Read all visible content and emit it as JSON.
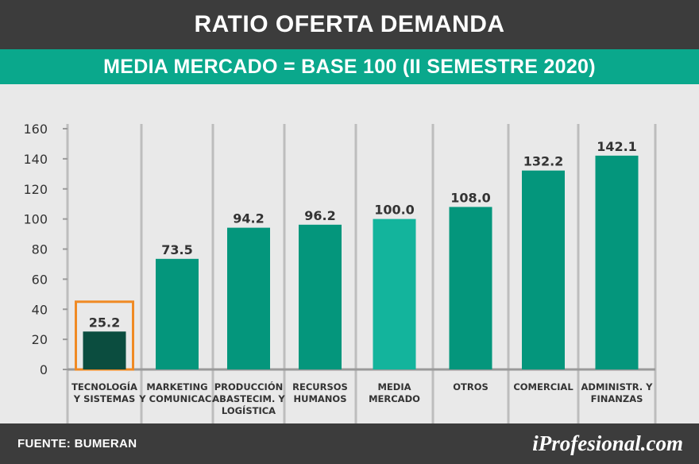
{
  "header": {
    "title": "RATIO OFERTA DEMANDA",
    "subtitle": "MEDIA MERCADO = BASE 100 (II SEMESTRE 2020)"
  },
  "footer": {
    "source": "FUENTE: BUMERAN",
    "brand": "iProfesional.com"
  },
  "colors": {
    "bar": "#04967c",
    "bar_media": "#13b49c",
    "bar_highlight": "#0b4d3f",
    "highlight_outline": "#f08a24",
    "title_bg": "#3c3c3c",
    "subtitle_bg": "#0aa88c"
  },
  "chart_data": {
    "type": "bar",
    "categories": [
      [
        "TECNOLOGÍA",
        "Y SISTEMAS"
      ],
      [
        "MARKETING",
        "Y COMUNICAC."
      ],
      [
        "PRODUCCIÓN",
        "ABASTECIM. Y",
        "LOGÍSTICA"
      ],
      [
        "RECURSOS",
        "HUMANOS"
      ],
      [
        "MEDIA",
        "MERCADO"
      ],
      [
        "OTROS"
      ],
      [
        "COMERCIAL"
      ],
      [
        "ADMINISTR. Y",
        "FINANZAS"
      ]
    ],
    "values": [
      25.2,
      73.5,
      94.2,
      96.2,
      100.0,
      108.0,
      132.2,
      142.1
    ],
    "value_labels": [
      "25.2",
      "73.5",
      "94.2",
      "96.2",
      "100.0",
      "108.0",
      "132.2",
      "142.1"
    ],
    "highlighted_category_index": 0,
    "media_category_index": 4,
    "ylim": [
      0,
      160
    ],
    "yticks": [
      "0",
      "20",
      "40",
      "60",
      "80",
      "100",
      "120",
      "140",
      "160"
    ],
    "grid": "vertical separators",
    "legend": "none"
  }
}
